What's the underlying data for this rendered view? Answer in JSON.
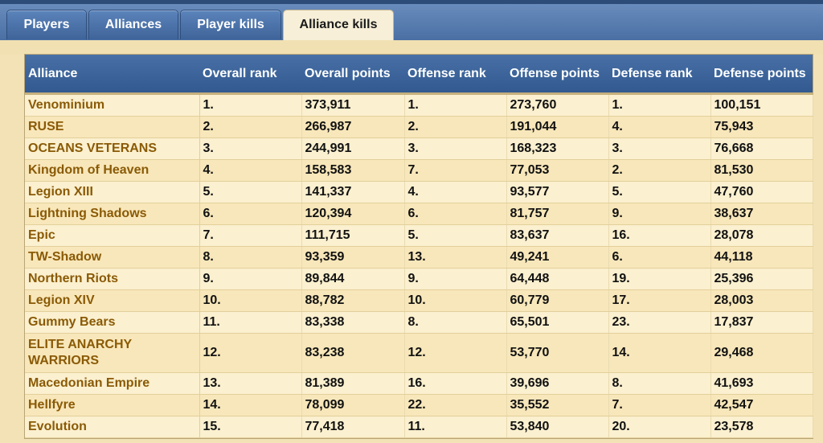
{
  "tabs": [
    {
      "label": "Players",
      "active": false
    },
    {
      "label": "Alliances",
      "active": false
    },
    {
      "label": "Player kills",
      "active": false
    },
    {
      "label": "Alliance kills",
      "active": true
    }
  ],
  "table": {
    "headers": [
      "Alliance",
      "Overall rank",
      "Overall points",
      "Offense rank",
      "Offense points",
      "Defense rank",
      "Defense points"
    ],
    "rows": [
      [
        "Venominium",
        "1.",
        "373,911",
        "1.",
        "273,760",
        "1.",
        "100,151"
      ],
      [
        "RUSE",
        "2.",
        "266,987",
        "2.",
        "191,044",
        "4.",
        "75,943"
      ],
      [
        "OCEANS VETERANS",
        "3.",
        "244,991",
        "3.",
        "168,323",
        "3.",
        "76,668"
      ],
      [
        "Kingdom of Heaven",
        "4.",
        "158,583",
        "7.",
        "77,053",
        "2.",
        "81,530"
      ],
      [
        "Legion XIII",
        "5.",
        "141,337",
        "4.",
        "93,577",
        "5.",
        "47,760"
      ],
      [
        "Lightning Shadows",
        "6.",
        "120,394",
        "6.",
        "81,757",
        "9.",
        "38,637"
      ],
      [
        "Epic",
        "7.",
        "111,715",
        "5.",
        "83,637",
        "16.",
        "28,078"
      ],
      [
        "TW-Shadow",
        "8.",
        "93,359",
        "13.",
        "49,241",
        "6.",
        "44,118"
      ],
      [
        "Northern Riots",
        "9.",
        "89,844",
        "9.",
        "64,448",
        "19.",
        "25,396"
      ],
      [
        "Legion XIV",
        "10.",
        "88,782",
        "10.",
        "60,779",
        "17.",
        "28,003"
      ],
      [
        "Gummy Bears",
        "11.",
        "83,338",
        "8.",
        "65,501",
        "23.",
        "17,837"
      ],
      [
        "ELITE ANARCHY WARRIORS",
        "12.",
        "83,238",
        "12.",
        "53,770",
        "14.",
        "29,468"
      ],
      [
        "Macedonian Empire",
        "13.",
        "81,389",
        "16.",
        "39,696",
        "8.",
        "41,693"
      ],
      [
        "Hellfyre",
        "14.",
        "78,099",
        "22.",
        "35,552",
        "7.",
        "42,547"
      ],
      [
        "Evolution",
        "15.",
        "77,418",
        "11.",
        "53,840",
        "20.",
        "23,578"
      ]
    ]
  }
}
